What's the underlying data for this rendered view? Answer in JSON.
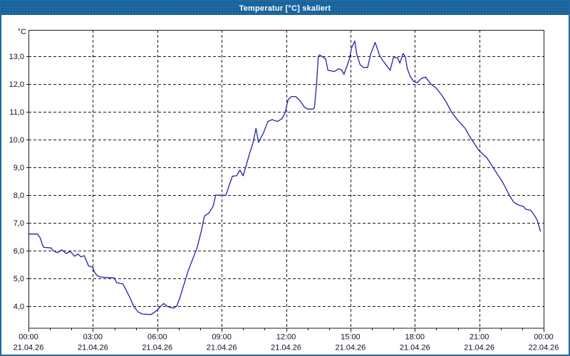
{
  "window": {
    "title": "Temperatur [°C] skaliert"
  },
  "colors": {
    "titlebar_bg": "#1c69a4",
    "window_border": "#1c69a4",
    "title_text": "#ffffff",
    "plot_bg": "#ffffff",
    "axis": "#1a1a1a",
    "grid": "#1a1a1a",
    "tick_label": "#0a1222",
    "line": "#2121ad"
  },
  "chart_data": {
    "type": "line",
    "title": "Temperatur [°C] skaliert",
    "ylabel": "°C",
    "xlabel": "",
    "grid": true,
    "legend_position": "none",
    "ylim": [
      3.22,
      13.95
    ],
    "xlim_hours": [
      0,
      24
    ],
    "yticks": [
      {
        "value": 4,
        "label": "4,0"
      },
      {
        "value": 5,
        "label": "5,0"
      },
      {
        "value": 6,
        "label": "6,0"
      },
      {
        "value": 7,
        "label": "7,0"
      },
      {
        "value": 8,
        "label": "8,0"
      },
      {
        "value": 9,
        "label": "9,0"
      },
      {
        "value": 10,
        "label": "10,0"
      },
      {
        "value": 11,
        "label": "11,0"
      },
      {
        "value": 12,
        "label": "12,0"
      },
      {
        "value": 13,
        "label": "13,0"
      }
    ],
    "xticks": [
      {
        "hour": 0,
        "time": "00:00",
        "date": "21.04.26"
      },
      {
        "hour": 3,
        "time": "03:00",
        "date": "21.04.26"
      },
      {
        "hour": 6,
        "time": "06:00",
        "date": "21.04.26"
      },
      {
        "hour": 9,
        "time": "09:00",
        "date": "21.04.26"
      },
      {
        "hour": 12,
        "time": "12:00",
        "date": "21.04.26"
      },
      {
        "hour": 15,
        "time": "15:00",
        "date": "21.04.26"
      },
      {
        "hour": 18,
        "time": "18:00",
        "date": "21.04.26"
      },
      {
        "hour": 21,
        "time": "21:00",
        "date": "21.04.26"
      },
      {
        "hour": 24,
        "time": "00:00",
        "date": "22.04.26"
      }
    ],
    "minor_xtick_step_hours": 1,
    "series": [
      {
        "name": "Temperatur [°C]",
        "unit": "°C",
        "points": [
          [
            0.0,
            6.6
          ],
          [
            0.42,
            6.6
          ],
          [
            0.55,
            6.45
          ],
          [
            0.65,
            6.2
          ],
          [
            0.72,
            6.12
          ],
          [
            1.05,
            6.1
          ],
          [
            1.15,
            6.0
          ],
          [
            1.35,
            5.93
          ],
          [
            1.55,
            6.03
          ],
          [
            1.75,
            5.9
          ],
          [
            1.95,
            5.97
          ],
          [
            2.15,
            5.8
          ],
          [
            2.3,
            5.88
          ],
          [
            2.45,
            5.78
          ],
          [
            2.6,
            5.82
          ],
          [
            2.8,
            5.45
          ],
          [
            3.0,
            5.4
          ],
          [
            3.05,
            5.25
          ],
          [
            3.2,
            5.1
          ],
          [
            3.35,
            5.05
          ],
          [
            4.0,
            5.02
          ],
          [
            4.1,
            4.85
          ],
          [
            4.4,
            4.8
          ],
          [
            4.7,
            4.35
          ],
          [
            4.9,
            4.0
          ],
          [
            5.1,
            3.8
          ],
          [
            5.3,
            3.72
          ],
          [
            5.7,
            3.7
          ],
          [
            5.95,
            3.83
          ],
          [
            6.1,
            3.95
          ],
          [
            6.3,
            4.1
          ],
          [
            6.5,
            3.98
          ],
          [
            6.75,
            3.93
          ],
          [
            6.9,
            4.0
          ],
          [
            7.05,
            4.3
          ],
          [
            7.25,
            4.8
          ],
          [
            7.45,
            5.3
          ],
          [
            7.65,
            5.7
          ],
          [
            7.85,
            6.1
          ],
          [
            8.05,
            6.7
          ],
          [
            8.2,
            7.25
          ],
          [
            8.4,
            7.35
          ],
          [
            8.6,
            7.6
          ],
          [
            8.72,
            8.0
          ],
          [
            9.2,
            8.0
          ],
          [
            9.35,
            8.35
          ],
          [
            9.5,
            8.68
          ],
          [
            9.7,
            8.7
          ],
          [
            9.85,
            8.9
          ],
          [
            10.0,
            8.7
          ],
          [
            10.15,
            9.1
          ],
          [
            10.3,
            9.5
          ],
          [
            10.45,
            9.85
          ],
          [
            10.6,
            10.4
          ],
          [
            10.72,
            9.9
          ],
          [
            10.95,
            10.25
          ],
          [
            11.15,
            10.65
          ],
          [
            11.35,
            10.72
          ],
          [
            11.6,
            10.65
          ],
          [
            11.8,
            10.75
          ],
          [
            11.95,
            10.95
          ],
          [
            12.1,
            11.45
          ],
          [
            12.25,
            11.55
          ],
          [
            12.45,
            11.55
          ],
          [
            12.65,
            11.4
          ],
          [
            12.85,
            11.17
          ],
          [
            13.0,
            11.1
          ],
          [
            13.25,
            11.1
          ],
          [
            13.32,
            11.15
          ],
          [
            13.42,
            12.0
          ],
          [
            13.5,
            13.0
          ],
          [
            13.57,
            13.05
          ],
          [
            13.85,
            12.9
          ],
          [
            13.95,
            12.5
          ],
          [
            14.25,
            12.45
          ],
          [
            14.45,
            12.55
          ],
          [
            14.6,
            12.5
          ],
          [
            14.7,
            12.35
          ],
          [
            14.95,
            12.9
          ],
          [
            15.05,
            13.3
          ],
          [
            15.2,
            13.55
          ],
          [
            15.3,
            13.05
          ],
          [
            15.45,
            12.7
          ],
          [
            15.6,
            12.6
          ],
          [
            15.8,
            12.6
          ],
          [
            15.95,
            13.1
          ],
          [
            16.15,
            13.5
          ],
          [
            16.35,
            13.05
          ],
          [
            16.5,
            12.85
          ],
          [
            16.7,
            12.65
          ],
          [
            16.85,
            12.5
          ],
          [
            17.0,
            12.95
          ],
          [
            17.2,
            12.95
          ],
          [
            17.3,
            12.75
          ],
          [
            17.45,
            13.1
          ],
          [
            17.55,
            13.0
          ],
          [
            17.65,
            12.55
          ],
          [
            17.8,
            12.25
          ],
          [
            17.95,
            12.1
          ],
          [
            18.1,
            12.05
          ],
          [
            18.3,
            12.2
          ],
          [
            18.5,
            12.25
          ],
          [
            18.75,
            12.0
          ],
          [
            19.0,
            11.85
          ],
          [
            19.3,
            11.55
          ],
          [
            19.5,
            11.3
          ],
          [
            19.7,
            11.0
          ],
          [
            20.0,
            10.7
          ],
          [
            20.35,
            10.4
          ],
          [
            20.6,
            10.05
          ],
          [
            21.0,
            9.6
          ],
          [
            21.35,
            9.35
          ],
          [
            21.6,
            9.05
          ],
          [
            21.85,
            8.75
          ],
          [
            22.1,
            8.45
          ],
          [
            22.4,
            8.0
          ],
          [
            22.6,
            7.75
          ],
          [
            22.8,
            7.65
          ],
          [
            23.05,
            7.6
          ],
          [
            23.15,
            7.5
          ],
          [
            23.4,
            7.45
          ],
          [
            23.55,
            7.3
          ],
          [
            23.7,
            7.1
          ],
          [
            23.85,
            6.7
          ]
        ]
      }
    ]
  }
}
